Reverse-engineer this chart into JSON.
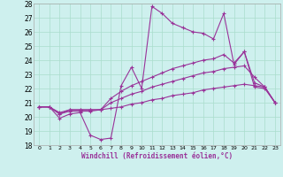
{
  "xlabel": "Windchill (Refroidissement éolien,°C)",
  "background_color": "#cef0ee",
  "grid_color": "#aaddcc",
  "line_color": "#993399",
  "xlim": [
    -0.5,
    23.5
  ],
  "ylim": [
    18,
    28
  ],
  "xticks": [
    0,
    1,
    2,
    3,
    4,
    5,
    6,
    7,
    8,
    9,
    10,
    11,
    12,
    13,
    14,
    15,
    16,
    17,
    18,
    19,
    20,
    21,
    22,
    23
  ],
  "yticks": [
    18,
    19,
    20,
    21,
    22,
    23,
    24,
    25,
    26,
    27,
    28
  ],
  "series": {
    "line1": [
      20.7,
      20.7,
      19.9,
      20.2,
      20.3,
      18.7,
      18.4,
      18.5,
      22.2,
      23.5,
      22.0,
      27.8,
      27.3,
      26.6,
      26.3,
      26.0,
      25.9,
      25.5,
      27.3,
      23.7,
      24.6,
      22.1,
      22.0,
      21.0
    ],
    "line2": [
      20.7,
      20.7,
      20.2,
      20.5,
      20.5,
      20.5,
      20.5,
      21.3,
      21.8,
      22.2,
      22.5,
      22.8,
      23.1,
      23.4,
      23.6,
      23.8,
      24.0,
      24.1,
      24.4,
      23.8,
      24.6,
      22.4,
      22.1,
      21.0
    ],
    "line3": [
      20.7,
      20.7,
      20.3,
      20.5,
      20.5,
      20.5,
      20.5,
      21.0,
      21.3,
      21.6,
      21.8,
      22.1,
      22.3,
      22.5,
      22.7,
      22.9,
      23.1,
      23.2,
      23.4,
      23.5,
      23.6,
      22.8,
      22.1,
      21.0
    ],
    "line4": [
      20.7,
      20.7,
      20.2,
      20.4,
      20.4,
      20.4,
      20.5,
      20.6,
      20.7,
      20.9,
      21.0,
      21.2,
      21.3,
      21.5,
      21.6,
      21.7,
      21.9,
      22.0,
      22.1,
      22.2,
      22.3,
      22.2,
      22.1,
      21.0
    ]
  }
}
